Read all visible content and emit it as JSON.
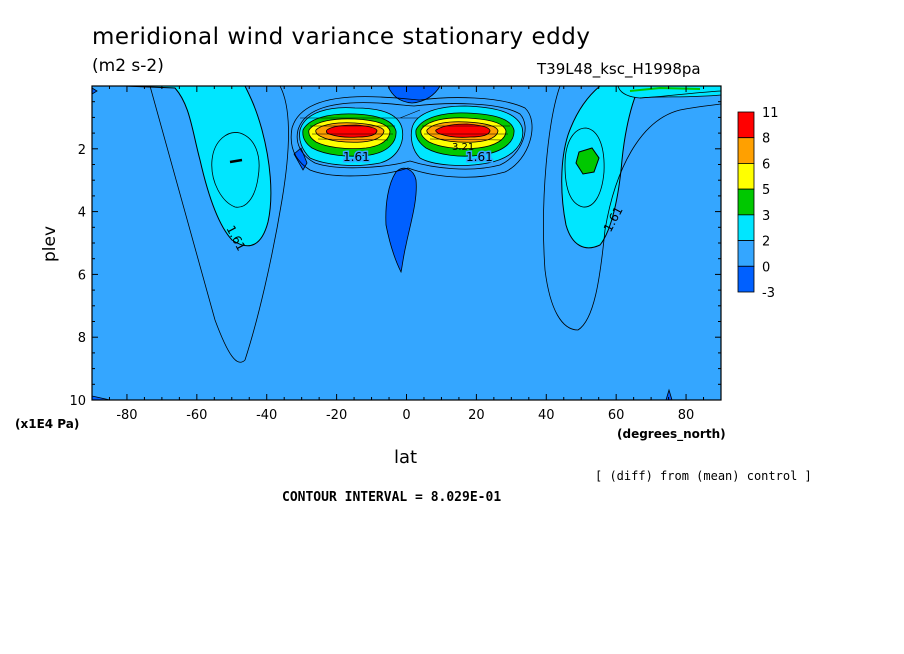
{
  "header": {
    "title": "meridional wind variance  stationary eddy",
    "units": "(m2 s-2)",
    "experiment": "T39L48_ksc_H1998pa"
  },
  "footer": {
    "comparison_note": "[ (diff) from (mean) control ]",
    "contour_interval": "CONTOUR INTERVAL = 8.029E-01"
  },
  "colors": {
    "background_fill": "#34a6ff",
    "deep_blue": "#0060ff",
    "cyan": "#00e6ff",
    "green": "#00c800",
    "yellow": "#ffff00",
    "orange": "#ffa000",
    "red": "#ff0000",
    "axis": "#000000"
  },
  "chart_data": {
    "type": "contour",
    "xlabel": "lat",
    "xunit": "(degrees_north)",
    "ylabel": "plev",
    "yunit": "(x1E4 Pa)",
    "xlim": [
      -90,
      90
    ],
    "ylim": [
      10,
      0
    ],
    "y_inverted": true,
    "x_ticks": [
      -80,
      -60,
      -40,
      -20,
      0,
      20,
      40,
      60,
      80
    ],
    "y_ticks": [
      2,
      4,
      6,
      8,
      10
    ],
    "contour_labels": [
      "1.61",
      "1.61",
      "1.61",
      "1.61",
      "1.61",
      "3.21"
    ],
    "colorbar": {
      "labels": [
        "11",
        "8",
        "6",
        "5",
        "3",
        "2",
        "0",
        "-3"
      ],
      "colors": [
        "#ff0000",
        "#ffa000",
        "#ffff00",
        "#00c800",
        "#00e6ff",
        "#34a6ff",
        "#0060ff"
      ]
    },
    "features": [
      {
        "name": "jet core NH",
        "lat": 13,
        "plev": 1.5,
        "level": "max"
      },
      {
        "name": "jet core SH",
        "lat": -13,
        "plev": 1.5,
        "level": "max"
      },
      {
        "name": "SH cyan lobe",
        "lat": -47,
        "plev": 2.5,
        "level": "2-3"
      },
      {
        "name": "NH green patch",
        "lat": 51,
        "plev": 2.5,
        "level": "3-5"
      },
      {
        "name": "equatorial minimum",
        "lat": -2,
        "plev": 4,
        "level": "below 0"
      }
    ]
  }
}
